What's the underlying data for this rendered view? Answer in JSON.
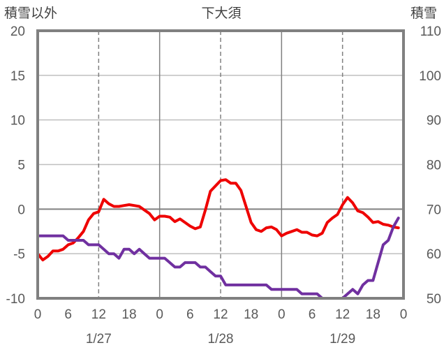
{
  "chart_data": {
    "type": "line",
    "title": "下大須",
    "left_axis_label": "積雪以外",
    "right_axis_label": "積雪",
    "left_ylim": [
      -10,
      20
    ],
    "right_ylim": [
      50,
      110
    ],
    "left_ticks": [
      "20",
      "15",
      "10",
      "5",
      "0",
      "-5",
      "-10"
    ],
    "right_ticks": [
      "110",
      "100",
      "90",
      "80",
      "70",
      "60",
      "50"
    ],
    "xlim": [
      0,
      72
    ],
    "x_tick_positions": [
      0,
      6,
      12,
      18,
      24,
      30,
      36,
      42,
      48,
      54,
      60,
      66,
      72
    ],
    "x_tick_labels": [
      "0",
      "6",
      "12",
      "18",
      "0",
      "6",
      "12",
      "18",
      "0",
      "6",
      "12",
      "18",
      "0"
    ],
    "dates": [
      {
        "label": "1/27",
        "at": 12
      },
      {
        "label": "1/28",
        "at": 36
      },
      {
        "label": "1/29",
        "at": 60
      }
    ],
    "grid": "vertical-dashed-at-12h, solid-at-day-boundaries",
    "series": [
      {
        "axis": "left",
        "color": "#ee0000",
        "x": [
          0,
          1,
          2,
          3,
          4,
          5,
          6,
          7,
          8,
          9,
          10,
          11,
          12,
          13,
          14,
          15,
          16,
          17,
          18,
          19,
          20,
          21,
          22,
          23,
          24,
          25,
          26,
          27,
          28,
          29,
          30,
          31,
          32,
          33,
          34,
          35,
          36,
          37,
          38,
          39,
          40,
          41,
          42,
          43,
          44,
          45,
          46,
          47,
          48,
          49,
          50,
          51,
          52,
          53,
          54,
          55,
          56,
          57,
          58,
          59,
          60,
          61,
          62,
          63,
          64,
          65,
          66,
          67,
          68,
          69,
          70,
          71
        ],
        "values": [
          -5.0,
          -5.7,
          -5.3,
          -4.7,
          -4.7,
          -4.5,
          -4.0,
          -3.8,
          -3.2,
          -2.5,
          -1.2,
          -0.5,
          -0.3,
          1.1,
          0.6,
          0.3,
          0.3,
          0.4,
          0.5,
          0.4,
          0.3,
          -0.1,
          -0.5,
          -1.2,
          -0.8,
          -0.8,
          -0.9,
          -1.4,
          -1.1,
          -1.5,
          -1.9,
          -2.2,
          -2.0,
          -0.1,
          2.0,
          2.6,
          3.2,
          3.3,
          2.9,
          2.9,
          2.1,
          0.3,
          -1.5,
          -2.3,
          -2.5,
          -2.1,
          -2.0,
          -2.3,
          -3.0,
          -2.7,
          -2.5,
          -2.3,
          -2.6,
          -2.6,
          -2.9,
          -3.0,
          -2.7,
          -1.5,
          -1.0,
          -0.6,
          0.5,
          1.3,
          0.7,
          -0.2,
          -0.4,
          -0.9,
          -1.5,
          -1.4,
          -1.7,
          -1.8,
          -2.0,
          -2.1
        ]
      },
      {
        "axis": "right",
        "color": "#7030a0",
        "x": [
          0,
          1,
          2,
          3,
          4,
          5,
          6,
          7,
          8,
          9,
          10,
          11,
          12,
          13,
          14,
          15,
          16,
          17,
          18,
          19,
          20,
          21,
          22,
          23,
          24,
          25,
          26,
          27,
          28,
          29,
          30,
          31,
          32,
          33,
          34,
          35,
          36,
          37,
          38,
          39,
          40,
          41,
          42,
          43,
          44,
          45,
          46,
          47,
          48,
          49,
          50,
          51,
          52,
          53,
          54,
          55,
          56,
          57,
          58,
          59,
          60,
          61,
          62,
          63,
          64,
          65,
          66,
          67,
          68,
          69,
          70,
          71
        ],
        "values": [
          64,
          64,
          64,
          64,
          64,
          64,
          63,
          63,
          63,
          63,
          62,
          62,
          62,
          61,
          60,
          60,
          59,
          61,
          61,
          60,
          61,
          60,
          59,
          59,
          59,
          59,
          58,
          57,
          57,
          58,
          58,
          58,
          57,
          57,
          56,
          55,
          55,
          53,
          53,
          53,
          53,
          53,
          53,
          53,
          53,
          53,
          52,
          52,
          52,
          52,
          52,
          52,
          51,
          51,
          51,
          51,
          50,
          50,
          50,
          50,
          50,
          51,
          52,
          51,
          53,
          54,
          54,
          58,
          62,
          63,
          66,
          68
        ]
      }
    ]
  }
}
